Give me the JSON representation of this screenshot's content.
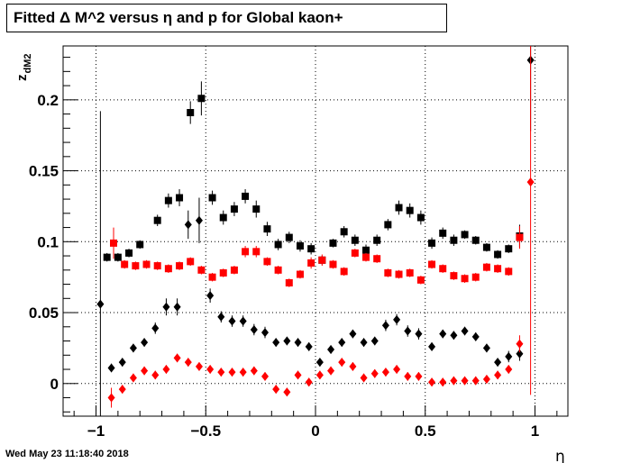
{
  "chart_data": {
    "type": "scatter",
    "title": "Fitted Δ M^2 versus η and p for Global kaon+",
    "xlabel": "η",
    "ylabel": "z",
    "ylabel_sub": "dM2",
    "xlim": [
      -1.15,
      1.15
    ],
    "ylim": [
      -0.023,
      0.238
    ],
    "x_ticks": [
      -1,
      -0.5,
      0,
      0.5,
      1
    ],
    "x_tick_labels": [
      "−1",
      "−0.5",
      "0",
      "0.5",
      "1"
    ],
    "y_ticks": [
      0,
      0.05,
      0.1,
      0.15,
      0.2
    ],
    "y_tick_labels": [
      "0",
      "0.05",
      "0.1",
      "0.15",
      "0.2"
    ],
    "grid": true,
    "series": [
      {
        "color": "#000000",
        "marker": "square",
        "points": [
          [
            -0.95,
            0.089,
            0.003
          ],
          [
            -0.9,
            0.089,
            0.003
          ],
          [
            -0.85,
            0.092,
            0.003
          ],
          [
            -0.8,
            0.098,
            0.003
          ],
          [
            -0.72,
            0.115,
            0.004
          ],
          [
            -0.67,
            0.129,
            0.005
          ],
          [
            -0.62,
            0.131,
            0.006
          ],
          [
            -0.57,
            0.191,
            0.008
          ],
          [
            -0.52,
            0.201,
            0.012
          ],
          [
            -0.47,
            0.131,
            0.005
          ],
          [
            -0.42,
            0.117,
            0.005
          ],
          [
            -0.37,
            0.123,
            0.005
          ],
          [
            -0.32,
            0.132,
            0.005
          ],
          [
            -0.27,
            0.123,
            0.006
          ],
          [
            -0.22,
            0.109,
            0.005
          ],
          [
            -0.17,
            0.098,
            0.004
          ],
          [
            -0.12,
            0.103,
            0.004
          ],
          [
            -0.07,
            0.097,
            0.004
          ],
          [
            -0.02,
            0.095,
            0.004
          ],
          [
            0.03,
            0.087,
            0.003
          ],
          [
            0.08,
            0.099,
            0.003
          ],
          [
            0.13,
            0.107,
            0.004
          ],
          [
            0.18,
            0.101,
            0.004
          ],
          [
            0.23,
            0.094,
            0.004
          ],
          [
            0.28,
            0.101,
            0.004
          ],
          [
            0.33,
            0.112,
            0.004
          ],
          [
            0.38,
            0.124,
            0.005
          ],
          [
            0.43,
            0.122,
            0.005
          ],
          [
            0.48,
            0.117,
            0.005
          ],
          [
            0.53,
            0.099,
            0.004
          ],
          [
            0.58,
            0.106,
            0.004
          ],
          [
            0.63,
            0.101,
            0.004
          ],
          [
            0.68,
            0.105,
            0.003
          ],
          [
            0.73,
            0.101,
            0.003
          ],
          [
            0.78,
            0.096,
            0.003
          ],
          [
            0.83,
            0.091,
            0.003
          ],
          [
            0.88,
            0.095,
            0.003
          ],
          [
            0.93,
            0.104,
            0.008
          ]
        ]
      },
      {
        "color": "#000000",
        "marker": "diamond",
        "points": [
          [
            -0.98,
            0.056,
            0.136
          ],
          [
            -0.93,
            0.011,
            0.003
          ],
          [
            -0.88,
            0.015,
            0.003
          ],
          [
            -0.83,
            0.025,
            0.003
          ],
          [
            -0.78,
            0.029,
            0.003
          ],
          [
            -0.73,
            0.039,
            0.004
          ],
          [
            -0.68,
            0.054,
            0.006
          ],
          [
            -0.63,
            0.054,
            0.006
          ],
          [
            -0.58,
            0.112,
            0.01
          ],
          [
            -0.53,
            0.115,
            0.016
          ],
          [
            -0.48,
            0.062,
            0.005
          ],
          [
            -0.43,
            0.047,
            0.004
          ],
          [
            -0.38,
            0.044,
            0.004
          ],
          [
            -0.33,
            0.044,
            0.004
          ],
          [
            -0.28,
            0.038,
            0.004
          ],
          [
            -0.23,
            0.036,
            0.004
          ],
          [
            -0.18,
            0.029,
            0.003
          ],
          [
            -0.13,
            0.03,
            0.003
          ],
          [
            -0.08,
            0.029,
            0.003
          ],
          [
            -0.03,
            0.026,
            0.003
          ],
          [
            0.02,
            0.015,
            0.003
          ],
          [
            0.07,
            0.024,
            0.003
          ],
          [
            0.12,
            0.029,
            0.003
          ],
          [
            0.17,
            0.035,
            0.003
          ],
          [
            0.22,
            0.029,
            0.003
          ],
          [
            0.27,
            0.03,
            0.003
          ],
          [
            0.32,
            0.041,
            0.004
          ],
          [
            0.37,
            0.045,
            0.004
          ],
          [
            0.42,
            0.037,
            0.004
          ],
          [
            0.47,
            0.035,
            0.004
          ],
          [
            0.53,
            0.026,
            0.003
          ],
          [
            0.58,
            0.035,
            0.003
          ],
          [
            0.63,
            0.034,
            0.003
          ],
          [
            0.68,
            0.037,
            0.003
          ],
          [
            0.73,
            0.033,
            0.003
          ],
          [
            0.78,
            0.025,
            0.003
          ],
          [
            0.83,
            0.015,
            0.003
          ],
          [
            0.88,
            0.019,
            0.004
          ],
          [
            0.93,
            0.021,
            0.005
          ],
          [
            0.98,
            0.228,
            0.05
          ]
        ]
      },
      {
        "color": "#ff0000",
        "marker": "square",
        "points": [
          [
            -0.92,
            0.099,
            0.011
          ],
          [
            -0.87,
            0.084,
            0.003
          ],
          [
            -0.82,
            0.083,
            0.003
          ],
          [
            -0.77,
            0.084,
            0.003
          ],
          [
            -0.72,
            0.083,
            0.003
          ],
          [
            -0.67,
            0.081,
            0.003
          ],
          [
            -0.62,
            0.083,
            0.003
          ],
          [
            -0.57,
            0.086,
            0.003
          ],
          [
            -0.52,
            0.08,
            0.003
          ],
          [
            -0.47,
            0.075,
            0.003
          ],
          [
            -0.42,
            0.078,
            0.003
          ],
          [
            -0.37,
            0.08,
            0.003
          ],
          [
            -0.32,
            0.093,
            0.004
          ],
          [
            -0.27,
            0.093,
            0.004
          ],
          [
            -0.22,
            0.086,
            0.003
          ],
          [
            -0.17,
            0.08,
            0.003
          ],
          [
            -0.12,
            0.071,
            0.003
          ],
          [
            -0.07,
            0.077,
            0.003
          ],
          [
            -0.02,
            0.085,
            0.004
          ],
          [
            0.03,
            0.087,
            0.004
          ],
          [
            0.08,
            0.084,
            0.003
          ],
          [
            0.13,
            0.079,
            0.003
          ],
          [
            0.18,
            0.092,
            0.003
          ],
          [
            0.23,
            0.089,
            0.003
          ],
          [
            0.28,
            0.088,
            0.003
          ],
          [
            0.33,
            0.078,
            0.003
          ],
          [
            0.38,
            0.077,
            0.003
          ],
          [
            0.43,
            0.078,
            0.003
          ],
          [
            0.48,
            0.073,
            0.003
          ],
          [
            0.53,
            0.084,
            0.003
          ],
          [
            0.58,
            0.081,
            0.003
          ],
          [
            0.63,
            0.076,
            0.003
          ],
          [
            0.68,
            0.074,
            0.003
          ],
          [
            0.73,
            0.075,
            0.003
          ],
          [
            0.78,
            0.082,
            0.003
          ],
          [
            0.83,
            0.081,
            0.003
          ],
          [
            0.88,
            0.079,
            0.003
          ],
          [
            0.93,
            0.103,
            0.008
          ]
        ]
      },
      {
        "color": "#ff0000",
        "marker": "diamond",
        "points": [
          [
            -0.93,
            -0.01,
            0.007
          ],
          [
            -0.88,
            -0.004,
            0.003
          ],
          [
            -0.83,
            0.004,
            0.003
          ],
          [
            -0.78,
            0.009,
            0.003
          ],
          [
            -0.73,
            0.006,
            0.003
          ],
          [
            -0.68,
            0.01,
            0.003
          ],
          [
            -0.63,
            0.018,
            0.003
          ],
          [
            -0.58,
            0.015,
            0.003
          ],
          [
            -0.53,
            0.012,
            0.003
          ],
          [
            -0.48,
            0.01,
            0.003
          ],
          [
            -0.43,
            0.008,
            0.003
          ],
          [
            -0.38,
            0.008,
            0.003
          ],
          [
            -0.33,
            0.008,
            0.003
          ],
          [
            -0.28,
            0.009,
            0.003
          ],
          [
            -0.23,
            0.005,
            0.003
          ],
          [
            -0.18,
            -0.004,
            0.003
          ],
          [
            -0.13,
            -0.006,
            0.003
          ],
          [
            -0.08,
            0.006,
            0.003
          ],
          [
            -0.03,
            0.001,
            0.003
          ],
          [
            0.02,
            0.006,
            0.003
          ],
          [
            0.07,
            0.009,
            0.003
          ],
          [
            0.12,
            0.015,
            0.003
          ],
          [
            0.17,
            0.012,
            0.003
          ],
          [
            0.22,
            0.004,
            0.003
          ],
          [
            0.27,
            0.007,
            0.003
          ],
          [
            0.32,
            0.008,
            0.003
          ],
          [
            0.37,
            0.01,
            0.003
          ],
          [
            0.42,
            0.005,
            0.003
          ],
          [
            0.47,
            0.005,
            0.003
          ],
          [
            0.53,
            0.001,
            0.003
          ],
          [
            0.58,
            0.001,
            0.003
          ],
          [
            0.63,
            0.002,
            0.003
          ],
          [
            0.68,
            0.002,
            0.003
          ],
          [
            0.73,
            0.002,
            0.003
          ],
          [
            0.78,
            0.003,
            0.003
          ],
          [
            0.83,
            0.006,
            0.003
          ],
          [
            0.88,
            0.01,
            0.003
          ],
          [
            0.93,
            0.028,
            0.006
          ],
          [
            0.98,
            0.142,
            0.15
          ]
        ]
      }
    ]
  },
  "timestamp": "Wed May 23 11:18:40 2018"
}
